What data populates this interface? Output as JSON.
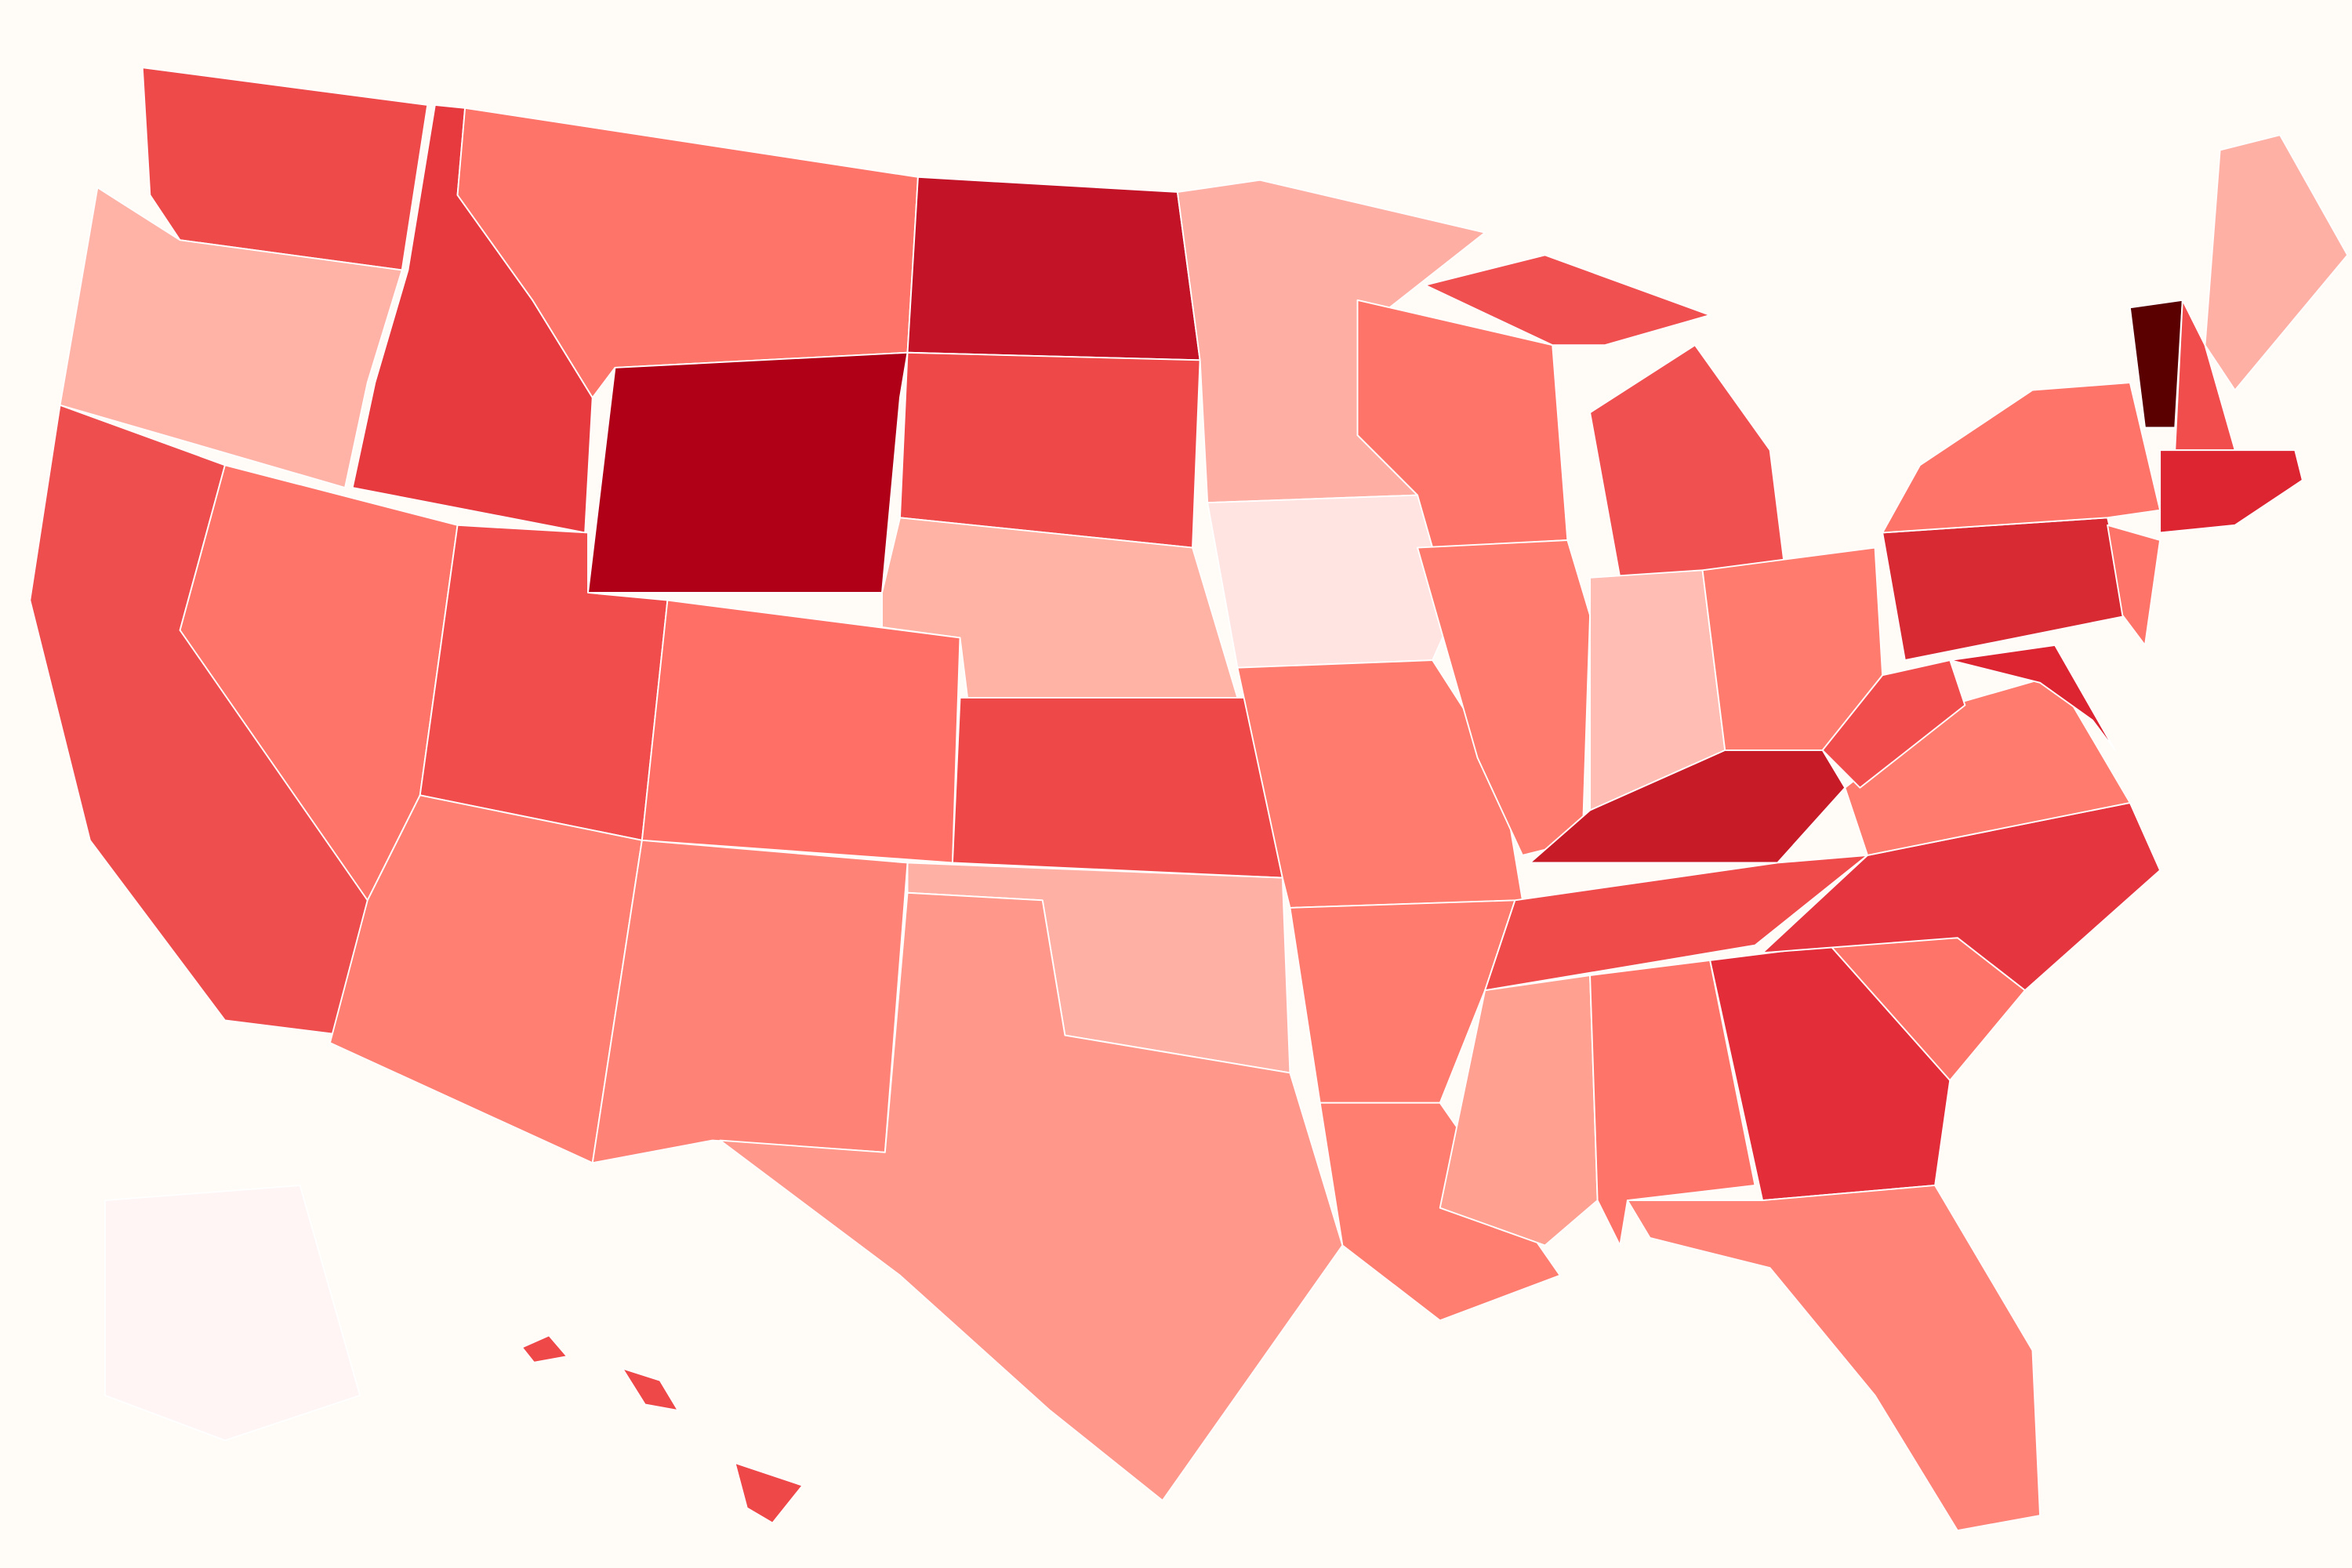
{
  "map": {
    "background": "#fffcf7",
    "border": "#ffffff",
    "fills": [
      "#ef4a4a",
      "#ffb3a7",
      "#e73a3f",
      "#ff7468",
      "#b00018",
      "#c21426",
      "#ef4848",
      "#ffb3a5",
      "#ffaea3",
      "#ffe4e1",
      "#ef4e4e",
      "#ff7468",
      "#f24d4d",
      "#ff6f65",
      "#ff7f72",
      "#ff8276",
      "#ef4848",
      "#ffb0a5",
      "#ff978a",
      "#ff7b6d",
      "#ff7b6d",
      "#ff7e70",
      "#ff7468",
      "#ff7b6d",
      "#f15050",
      "#f15050",
      "#ffbdb3",
      "#ff7b6d",
      "#c81b28",
      "#f04b4b",
      "#ffa090",
      "#ff7468",
      "#e32d39",
      "#ff8377",
      "#ff7468",
      "#e53640",
      "#ff7b6d",
      "#f24d4d",
      "#d82a33",
      "#ff7468",
      "#ff7468",
      "#dd2531",
      "#5a0000",
      "#f24d4d",
      "#ffb0a5",
      "#dd2531",
      "#fff5f4",
      "#ef4848",
      "#ef4848",
      "#ef4848"
    ]
  }
}
